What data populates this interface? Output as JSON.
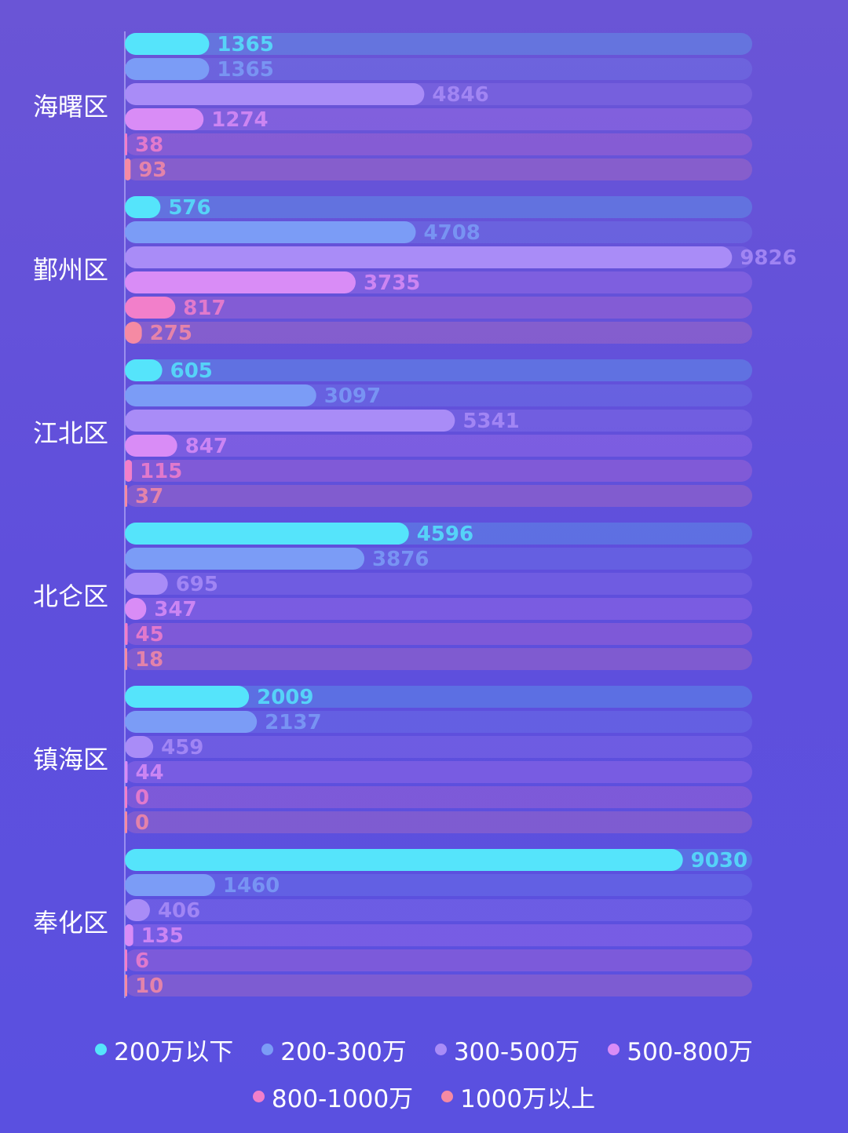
{
  "chart_data": {
    "type": "bar",
    "orientation": "horizontal",
    "categories": [
      "海曙区",
      "鄞州区",
      "江北区",
      "北仑区",
      "镇海区",
      "奉化区"
    ],
    "series": [
      {
        "name": "200万以下",
        "color": "#55e4fb",
        "values": [
          1365,
          576,
          605,
          4596,
          2009,
          9030
        ]
      },
      {
        "name": "200-300万",
        "color": "#7b9cf6",
        "values": [
          1365,
          4708,
          3097,
          3876,
          2137,
          1460
        ]
      },
      {
        "name": "300-500万",
        "color": "#a98cf7",
        "values": [
          4846,
          9826,
          5341,
          695,
          459,
          406
        ]
      },
      {
        "name": "500-800万",
        "color": "#d98cf6",
        "values": [
          1274,
          3735,
          847,
          347,
          44,
          135
        ]
      },
      {
        "name": "800-1000万",
        "color": "#f27fca",
        "values": [
          38,
          817,
          115,
          45,
          0,
          6
        ]
      },
      {
        "name": "1000万以上",
        "color": "#f58aa3",
        "values": [
          93,
          275,
          37,
          18,
          0,
          10
        ]
      }
    ],
    "xlim": [
      0,
      10000
    ],
    "grid": false,
    "legend_position": "bottom",
    "title": "",
    "xlabel": "",
    "ylabel": ""
  },
  "legend": {
    "rows": [
      [
        "200万以下",
        "200-300万",
        "300-500万",
        "500-800万"
      ],
      [
        "800-1000万",
        "1000万以上"
      ]
    ]
  }
}
